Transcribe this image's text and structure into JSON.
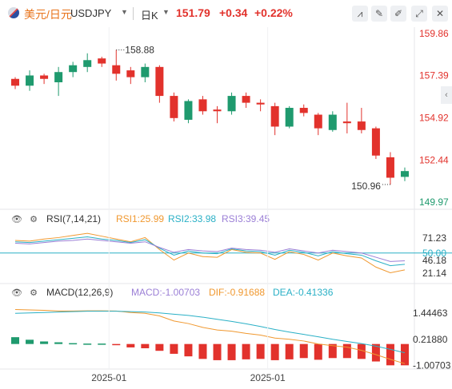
{
  "header": {
    "symbol_cn": "美元/日元",
    "symbol_en": "USDJPY",
    "period": "日K",
    "price": "151.79",
    "change": "+0.34",
    "change_pct": "+0.22%",
    "tools": [
      "chart-icon",
      "draw-icon",
      "edit-icon",
      "fullscreen-icon",
      "close-icon"
    ]
  },
  "side_tab": "‹",
  "colors": {
    "up": "#e2322c",
    "down": "#1f9a6e",
    "dif": "#f0982f",
    "dea": "#2ab0c6",
    "rsi3": "#9b7fd6",
    "rsi50": "#2ab0c6"
  },
  "chart_data": [
    {
      "type": "candlestick",
      "y_ticks": [
        "159.86",
        "157.39",
        "154.92",
        "152.44",
        "149.97"
      ],
      "ylim": [
        149.97,
        159.86
      ],
      "high_label": "158.88",
      "low_label": "150.96",
      "candles": [
        {
          "o": 157.2,
          "c": 156.8,
          "h": 157.3,
          "l": 156.6
        },
        {
          "o": 156.8,
          "c": 157.4,
          "h": 157.7,
          "l": 156.5
        },
        {
          "o": 157.4,
          "c": 157.2,
          "h": 157.5,
          "l": 156.9
        },
        {
          "o": 157.0,
          "c": 157.6,
          "h": 157.9,
          "l": 156.2
        },
        {
          "o": 157.6,
          "c": 158.0,
          "h": 158.2,
          "l": 157.3
        },
        {
          "o": 157.9,
          "c": 158.3,
          "h": 158.7,
          "l": 157.6
        },
        {
          "o": 158.4,
          "c": 158.1,
          "h": 158.5,
          "l": 157.9
        },
        {
          "o": 158.0,
          "c": 157.5,
          "h": 158.9,
          "l": 157.1
        },
        {
          "o": 157.7,
          "c": 157.3,
          "h": 157.9,
          "l": 156.9
        },
        {
          "o": 157.3,
          "c": 157.9,
          "h": 158.1,
          "l": 157.0
        },
        {
          "o": 157.9,
          "c": 156.2,
          "h": 158.0,
          "l": 155.8
        },
        {
          "o": 156.2,
          "c": 154.9,
          "h": 156.4,
          "l": 154.7
        },
        {
          "o": 154.8,
          "c": 155.9,
          "h": 156.0,
          "l": 154.6
        },
        {
          "o": 156.0,
          "c": 155.3,
          "h": 156.2,
          "l": 155.1
        },
        {
          "o": 155.4,
          "c": 155.3,
          "h": 155.6,
          "l": 154.6
        },
        {
          "o": 155.3,
          "c": 156.2,
          "h": 156.4,
          "l": 155.1
        },
        {
          "o": 156.2,
          "c": 155.8,
          "h": 156.4,
          "l": 155.5
        },
        {
          "o": 155.8,
          "c": 155.7,
          "h": 156.0,
          "l": 155.3
        },
        {
          "o": 155.6,
          "c": 154.4,
          "h": 155.8,
          "l": 153.9
        },
        {
          "o": 154.4,
          "c": 155.5,
          "h": 155.6,
          "l": 154.3
        },
        {
          "o": 155.5,
          "c": 155.2,
          "h": 155.7,
          "l": 155.0
        },
        {
          "o": 155.1,
          "c": 154.3,
          "h": 155.2,
          "l": 153.9
        },
        {
          "o": 154.2,
          "c": 155.1,
          "h": 155.3,
          "l": 154.1
        },
        {
          "o": 154.7,
          "c": 154.6,
          "h": 155.8,
          "l": 154.0
        },
        {
          "o": 154.7,
          "c": 154.2,
          "h": 155.5,
          "l": 154.0
        },
        {
          "o": 154.3,
          "c": 152.7,
          "h": 154.4,
          "l": 152.5
        },
        {
          "o": 152.6,
          "c": 151.4,
          "h": 152.9,
          "l": 151.0
        },
        {
          "o": 151.45,
          "c": 151.79,
          "h": 152.0,
          "l": 151.2
        }
      ]
    },
    {
      "type": "line",
      "name": "RSI(7,14,21)",
      "y_ticks": [
        "71.23",
        "50.00",
        "46.18",
        "21.14"
      ],
      "ylim": [
        10,
        85
      ],
      "series": [
        {
          "name": "RSI1:25.99",
          "values": [
            68,
            67,
            70,
            72,
            75,
            78,
            74,
            70,
            66,
            72,
            55,
            40,
            50,
            45,
            44,
            55,
            51,
            50,
            41,
            52,
            48,
            40,
            50,
            46,
            43,
            30,
            22,
            26
          ]
        },
        {
          "name": "RSI2:33.98",
          "values": [
            66,
            65,
            67,
            69,
            71,
            73,
            70,
            68,
            65,
            69,
            57,
            47,
            53,
            50,
            49,
            56,
            53,
            52,
            47,
            54,
            51,
            46,
            52,
            49,
            47,
            39,
            32,
            34
          ]
        },
        {
          "name": "RSI3:39.45",
          "values": [
            64,
            63,
            65,
            67,
            68,
            70,
            68,
            66,
            64,
            66,
            58,
            51,
            55,
            53,
            52,
            57,
            55,
            54,
            51,
            56,
            53,
            50,
            54,
            52,
            50,
            44,
            38,
            39
          ]
        }
      ]
    },
    {
      "type": "bar",
      "name": "MACD(12,26,9)",
      "y_ticks": [
        "1.44463",
        "0.21880",
        "-1.00703"
      ],
      "ylim": [
        -1.1,
        1.9
      ],
      "x_ticks": [
        {
          "index": 7,
          "label": "2025-01"
        },
        {
          "index": 18,
          "label": "2025-01"
        }
      ],
      "series": [
        {
          "name": "MACD:-1.00703",
          "values": [
            0.32,
            0.2,
            0.12,
            0.08,
            0.04,
            0.02,
            0.02,
            -0.04,
            -0.16,
            -0.2,
            -0.32,
            -0.46,
            -0.58,
            -0.7,
            -0.76,
            -0.76,
            -0.72,
            -0.7,
            -0.76,
            -0.72,
            -0.66,
            -0.74,
            -0.66,
            -0.66,
            -0.7,
            -0.82,
            -1.0,
            -1.0
          ]
        },
        {
          "name": "DIF:-0.91688",
          "values": [
            1.62,
            1.6,
            1.58,
            1.55,
            1.55,
            1.56,
            1.56,
            1.55,
            1.48,
            1.44,
            1.32,
            1.08,
            0.96,
            0.78,
            0.66,
            0.6,
            0.5,
            0.42,
            0.28,
            0.22,
            0.14,
            0.0,
            -0.08,
            -0.15,
            -0.3,
            -0.5,
            -0.72,
            -0.92
          ]
        },
        {
          "name": "DEA:-0.41336",
          "values": [
            1.44,
            1.46,
            1.48,
            1.5,
            1.52,
            1.54,
            1.54,
            1.54,
            1.52,
            1.5,
            1.46,
            1.4,
            1.34,
            1.26,
            1.16,
            1.06,
            0.95,
            0.82,
            0.68,
            0.56,
            0.45,
            0.34,
            0.22,
            0.12,
            0.02,
            -0.1,
            -0.25,
            -0.41
          ]
        }
      ]
    }
  ]
}
